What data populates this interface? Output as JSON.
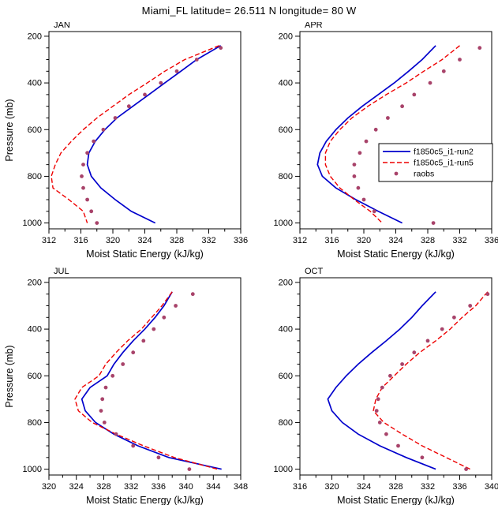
{
  "title": "Miami_FL  latitude= 26.511 N longitude= 80 W",
  "axes": {
    "xlabel": "Moist Static Energy (kJ/kg)",
    "ylabel": "Pressure (mb)"
  },
  "y_axis": {
    "top": 180,
    "bottom": 1025,
    "ticks": [
      200,
      400,
      600,
      800,
      1000
    ],
    "minor_step": 50,
    "unit": "mb",
    "reversed": true
  },
  "colors": {
    "run2": "#0000cc",
    "run5": "#ee0000",
    "raobs": "#a8436a",
    "axis": "#000000"
  },
  "legend": {
    "panel": "apr",
    "items": [
      {
        "key": "run2",
        "label": "f1850c5_i1-run2",
        "style": "solid",
        "color": "#0000cc"
      },
      {
        "key": "run5",
        "label": "f1850c5_i1-run5",
        "style": "dashed",
        "color": "#ee0000"
      },
      {
        "key": "raobs",
        "label": "raobs",
        "style": "dots",
        "color": "#a8436a"
      }
    ]
  },
  "chart_data": [
    {
      "id": "jan",
      "label": "JAN",
      "type": "line",
      "xlim": [
        312,
        336
      ],
      "xticks": [
        312,
        316,
        320,
        324,
        328,
        332,
        336
      ],
      "x_minor_step": 2,
      "show_legend": false,
      "series": [
        {
          "key": "run2",
          "name": "f1850c5_i1-run2",
          "style": "solid",
          "color": "#0000cc",
          "pressure": [
            240,
            300,
            350,
            400,
            450,
            500,
            550,
            600,
            650,
            700,
            750,
            800,
            850,
            900,
            950,
            1000
          ],
          "values": [
            333.5,
            330.5,
            328.5,
            326.5,
            324.5,
            322.5,
            320.5,
            319.0,
            317.8,
            317.0,
            316.8,
            317.3,
            318.5,
            320.3,
            322.3,
            325.3
          ]
        },
        {
          "key": "run5",
          "name": "f1850c5_i1-run5",
          "style": "dashed",
          "color": "#ee0000",
          "pressure": [
            240,
            300,
            350,
            400,
            450,
            500,
            550,
            600,
            650,
            700,
            750,
            800,
            850,
            900,
            950,
            1000
          ],
          "values": [
            333.3,
            329.0,
            326.5,
            324.3,
            322.0,
            320.0,
            318.0,
            316.3,
            314.8,
            313.5,
            312.8,
            312.3,
            312.5,
            314.5,
            316.3,
            316.8
          ]
        },
        {
          "key": "raobs",
          "name": "raobs",
          "style": "dots",
          "color": "#a8436a",
          "pressure": [
            250,
            300,
            350,
            400,
            450,
            500,
            550,
            600,
            650,
            700,
            750,
            800,
            850,
            900,
            950,
            1000
          ],
          "values": [
            333.5,
            330.5,
            328.0,
            326.0,
            324.0,
            322.0,
            320.3,
            318.8,
            317.6,
            316.8,
            316.3,
            316.1,
            316.3,
            316.8,
            317.3,
            318.0
          ]
        }
      ]
    },
    {
      "id": "apr",
      "label": "APR",
      "type": "line",
      "xlim": [
        312,
        336
      ],
      "xticks": [
        312,
        316,
        320,
        324,
        328,
        332,
        336
      ],
      "x_minor_step": 2,
      "show_legend": true,
      "series": [
        {
          "key": "run2",
          "name": "f1850c5_i1-run2",
          "style": "solid",
          "color": "#0000cc",
          "pressure": [
            240,
            300,
            350,
            400,
            450,
            500,
            550,
            600,
            650,
            700,
            750,
            800,
            850,
            900,
            950,
            1000
          ],
          "values": [
            329.0,
            327.3,
            325.6,
            323.8,
            321.8,
            319.8,
            318.0,
            316.5,
            315.3,
            314.5,
            314.2,
            314.8,
            316.5,
            319.0,
            321.8,
            324.8
          ]
        },
        {
          "key": "run5",
          "name": "f1850c5_i1-run5",
          "style": "dashed",
          "color": "#ee0000",
          "pressure": [
            240,
            300,
            350,
            400,
            450,
            500,
            550,
            600,
            650,
            700,
            750,
            800,
            850,
            900,
            950,
            1000
          ],
          "values": [
            332.0,
            329.8,
            327.5,
            325.3,
            322.8,
            320.5,
            318.5,
            317.0,
            315.8,
            315.2,
            315.2,
            315.8,
            317.0,
            318.8,
            320.8,
            322.3
          ]
        },
        {
          "key": "raobs",
          "name": "raobs",
          "style": "dots",
          "color": "#a8436a",
          "pressure": [
            250,
            300,
            350,
            400,
            450,
            500,
            550,
            600,
            650,
            700,
            750,
            800,
            850,
            900,
            950,
            1000
          ],
          "values": [
            334.5,
            332.0,
            330.0,
            328.3,
            326.3,
            324.8,
            323.0,
            321.5,
            320.3,
            319.5,
            318.8,
            318.8,
            319.3,
            320.0,
            321.3,
            328.7
          ]
        }
      ]
    },
    {
      "id": "jul",
      "label": "JUL",
      "type": "line",
      "xlim": [
        320,
        348
      ],
      "xticks": [
        320,
        324,
        328,
        332,
        336,
        340,
        344,
        348
      ],
      "x_minor_step": 2,
      "show_legend": false,
      "series": [
        {
          "key": "run2",
          "name": "f1850c5_i1-run2",
          "style": "solid",
          "color": "#0000cc",
          "pressure": [
            240,
            300,
            350,
            400,
            450,
            500,
            550,
            600,
            650,
            700,
            750,
            800,
            850,
            900,
            950,
            1000
          ],
          "values": [
            338.0,
            336.8,
            335.5,
            334.0,
            332.3,
            330.8,
            329.5,
            328.5,
            326.0,
            324.8,
            325.3,
            326.8,
            329.5,
            333.0,
            337.5,
            345.2
          ]
        },
        {
          "key": "run5",
          "name": "f1850c5_i1-run5",
          "style": "dashed",
          "color": "#ee0000",
          "pressure": [
            240,
            300,
            350,
            400,
            450,
            500,
            550,
            600,
            650,
            700,
            750,
            800,
            850,
            900,
            950,
            1000
          ],
          "values": [
            338.0,
            336.5,
            335.0,
            333.5,
            331.5,
            329.8,
            328.3,
            327.3,
            324.8,
            323.8,
            324.3,
            326.3,
            329.8,
            333.8,
            338.3,
            344.6
          ]
        },
        {
          "key": "raobs",
          "name": "raobs",
          "style": "dots",
          "color": "#a8436a",
          "pressure": [
            250,
            300,
            350,
            400,
            450,
            500,
            550,
            600,
            650,
            700,
            750,
            800,
            850,
            900,
            950,
            1000
          ],
          "values": [
            341.0,
            338.5,
            336.8,
            335.3,
            333.8,
            332.3,
            330.8,
            329.3,
            328.3,
            327.8,
            327.6,
            328.1,
            329.8,
            332.3,
            336.0,
            340.5
          ]
        }
      ]
    },
    {
      "id": "oct",
      "label": "OCT",
      "type": "line",
      "xlim": [
        316,
        340
      ],
      "xticks": [
        316,
        320,
        324,
        328,
        332,
        336,
        340
      ],
      "x_minor_step": 2,
      "show_legend": false,
      "series": [
        {
          "key": "run2",
          "name": "f1850c5_i1-run2",
          "style": "solid",
          "color": "#0000cc",
          "pressure": [
            240,
            300,
            350,
            400,
            450,
            500,
            550,
            600,
            650,
            700,
            750,
            800,
            850,
            900,
            950,
            1000
          ],
          "values": [
            333.0,
            331.3,
            330.0,
            328.5,
            326.8,
            325.0,
            323.3,
            321.8,
            320.5,
            319.5,
            320.0,
            321.3,
            323.3,
            326.0,
            329.3,
            333.0
          ]
        },
        {
          "key": "run5",
          "name": "f1850c5_i1-run5",
          "style": "dashed",
          "color": "#ee0000",
          "pressure": [
            240,
            300,
            350,
            400,
            450,
            500,
            550,
            600,
            650,
            700,
            750,
            800,
            850,
            900,
            950,
            1000
          ],
          "values": [
            339.5,
            338.0,
            336.3,
            334.8,
            333.0,
            331.0,
            329.3,
            327.8,
            326.3,
            325.5,
            325.2,
            326.5,
            328.8,
            331.3,
            334.3,
            337.3
          ]
        },
        {
          "key": "raobs",
          "name": "raobs",
          "style": "dots",
          "color": "#a8436a",
          "pressure": [
            250,
            300,
            350,
            400,
            450,
            500,
            550,
            600,
            650,
            700,
            750,
            800,
            850,
            900,
            950,
            1000
          ],
          "values": [
            339.5,
            337.3,
            335.3,
            333.8,
            332.0,
            330.3,
            328.8,
            327.3,
            326.3,
            325.8,
            325.6,
            326.0,
            326.8,
            328.3,
            331.3,
            336.8
          ]
        }
      ]
    }
  ]
}
